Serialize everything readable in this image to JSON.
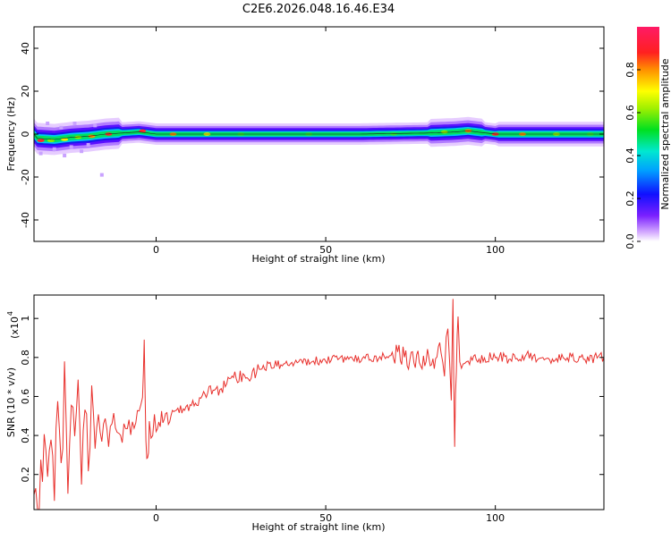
{
  "title": "C2E6.2026.048.16.46.E34",
  "chart_data": [
    {
      "type": "heatmap",
      "title": "C2E6.2026.048.16.46.E34",
      "xlabel": "Height of straight line (km)",
      "ylabel": "Frequency (Hz)",
      "xlim": [
        -36,
        132
      ],
      "ylim": [
        -50,
        50
      ],
      "xticks": [
        0,
        50,
        100
      ],
      "xtick_labels": [
        "0",
        "50",
        "100"
      ],
      "yticks": [
        -40,
        -20,
        0,
        20,
        40
      ],
      "ytick_labels": [
        "-40",
        "-20",
        "0",
        "20",
        "40"
      ],
      "grid": false,
      "colorbar": {
        "label": "Normalized spectral amplitude",
        "range": [
          0,
          1
        ],
        "ticks": [
          0.0,
          0.2,
          0.4,
          0.6,
          0.8
        ],
        "tick_labels": [
          "0.0",
          "0.2",
          "0.4",
          "0.6",
          "0.8"
        ]
      },
      "band": {
        "center_frequency_hz": [
          [
            -35,
            -2
          ],
          [
            -30,
            -2.5
          ],
          [
            -25,
            -1.5
          ],
          [
            -20,
            -1
          ],
          [
            -15,
            0
          ],
          [
            -10,
            0.5
          ],
          [
            -5,
            1
          ],
          [
            0,
            0
          ],
          [
            10,
            0
          ],
          [
            20,
            0
          ],
          [
            40,
            0
          ],
          [
            60,
            0
          ],
          [
            80,
            0.5
          ],
          [
            88,
            1
          ],
          [
            92,
            1.5
          ],
          [
            100,
            0
          ],
          [
            110,
            0
          ],
          [
            120,
            0
          ],
          [
            131,
            0
          ]
        ],
        "note_points": [
          [
            -34,
            -3,
            0.9
          ],
          [
            -31,
            -3,
            0.6
          ],
          [
            -27,
            -2.5,
            0.7
          ],
          [
            -23,
            -1.5,
            0.6
          ],
          [
            -19,
            -1,
            0.8
          ],
          [
            -14,
            0,
            0.95
          ],
          [
            -4,
            1.5,
            0.9
          ],
          [
            5,
            0,
            0.8
          ],
          [
            15,
            0,
            0.7
          ],
          [
            25,
            0,
            0.5
          ],
          [
            45,
            0,
            0.5
          ],
          [
            70,
            0,
            0.45
          ],
          [
            85,
            1,
            0.6
          ],
          [
            92,
            1.5,
            0.85
          ],
          [
            100,
            0,
            0.95
          ],
          [
            108,
            0,
            0.8
          ],
          [
            118,
            0,
            0.6
          ],
          [
            128,
            0,
            0.55
          ]
        ]
      }
    },
    {
      "type": "line",
      "xlabel": "Height of straight line (km)",
      "ylabel": "SNR (10 * v/v)",
      "y_multiplier_label": "(x10",
      "y_multiplier_exponent": "4",
      "xlim": [
        -36,
        132
      ],
      "ylim": [
        0.02,
        1.12
      ],
      "xticks": [
        0,
        50,
        100
      ],
      "xtick_labels": [
        "0",
        "50",
        "100"
      ],
      "yticks": [
        0.2,
        0.4,
        0.6,
        0.8,
        1.0
      ],
      "ytick_labels": [
        "0.2",
        "0.4",
        "0.6",
        "0.8",
        "1"
      ],
      "grid": false,
      "series": [
        {
          "color": "#e8302c",
          "x": [
            -36,
            -35,
            -34,
            -33,
            -32,
            -31,
            -30,
            -29,
            -28,
            -27,
            -26,
            -25,
            -24,
            -23,
            -22,
            -21,
            -20,
            -19,
            -18,
            -17,
            -16,
            -15,
            -14,
            -13,
            -12,
            -11,
            -10,
            -9,
            -8,
            -7,
            -6,
            -5,
            -4,
            -3.5,
            -3,
            -2.5,
            -2,
            -1,
            0,
            2,
            4,
            6,
            8,
            10,
            12,
            14,
            16,
            18,
            20,
            22,
            24,
            26,
            28,
            30,
            32,
            34,
            36,
            38,
            40,
            42,
            44,
            46,
            48,
            50,
            52,
            54,
            56,
            58,
            60,
            62,
            64,
            66,
            68,
            70,
            72,
            74,
            76,
            78,
            80,
            82,
            84,
            85,
            86,
            87,
            87.5,
            88,
            88.5,
            89,
            90,
            91,
            92,
            94,
            96,
            98,
            100,
            102,
            104,
            106,
            108,
            110,
            112,
            114,
            116,
            118,
            120,
            122,
            124,
            126,
            128,
            130,
            132
          ],
          "y": [
            0.25,
            0.05,
            0.18,
            0.38,
            0.12,
            0.45,
            0.22,
            0.55,
            0.15,
            0.62,
            0.1,
            0.5,
            0.28,
            0.66,
            0.2,
            0.55,
            0.3,
            0.6,
            0.35,
            0.5,
            0.42,
            0.48,
            0.38,
            0.52,
            0.4,
            0.45,
            0.42,
            0.44,
            0.46,
            0.43,
            0.48,
            0.52,
            0.58,
            0.85,
            0.38,
            0.28,
            0.42,
            0.45,
            0.46,
            0.5,
            0.48,
            0.52,
            0.55,
            0.52,
            0.58,
            0.6,
            0.62,
            0.64,
            0.66,
            0.68,
            0.7,
            0.71,
            0.72,
            0.74,
            0.75,
            0.76,
            0.76,
            0.77,
            0.77,
            0.78,
            0.78,
            0.79,
            0.78,
            0.79,
            0.79,
            0.8,
            0.79,
            0.8,
            0.79,
            0.8,
            0.8,
            0.8,
            0.81,
            0.8,
            0.83,
            0.8,
            0.82,
            0.8,
            0.81,
            0.8,
            0.88,
            0.72,
            0.95,
            0.6,
            1.12,
            0.35,
            0.78,
            0.95,
            0.7,
            0.82,
            0.78,
            0.8,
            0.79,
            0.8,
            0.81,
            0.8,
            0.79,
            0.8,
            0.8,
            0.81,
            0.8,
            0.8,
            0.79,
            0.8,
            0.81,
            0.8,
            0.8,
            0.8,
            0.79,
            0.8,
            0.8
          ]
        }
      ]
    }
  ]
}
